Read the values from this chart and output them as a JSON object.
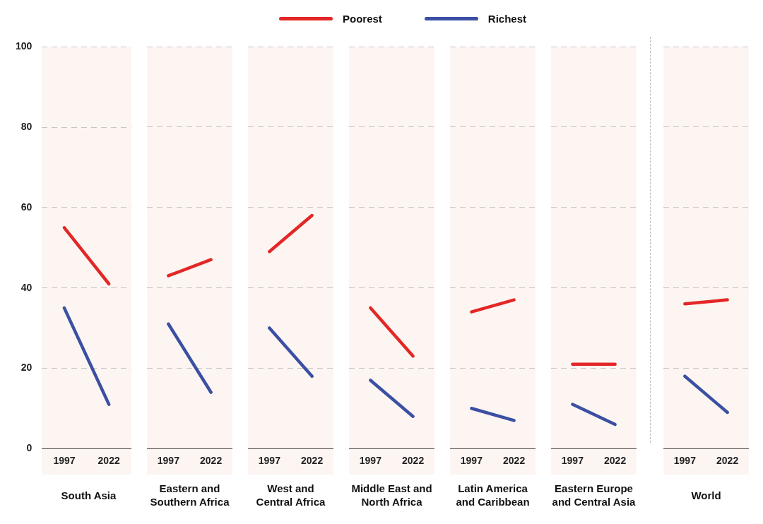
{
  "chart_data": [
    {
      "type": "line",
      "xlabel": "South Asia",
      "categories": [
        "1997",
        "2022"
      ],
      "series": [
        {
          "name": "Poorest",
          "color": "#e32726",
          "values": [
            55,
            41
          ]
        },
        {
          "name": "Richest",
          "color": "#3b4fa3",
          "values": [
            35,
            11
          ]
        }
      ],
      "ylim": [
        0,
        100
      ],
      "yticks": [
        0,
        20,
        40,
        60,
        80,
        100
      ],
      "grid": "y",
      "legend": "top"
    },
    {
      "type": "line",
      "xlabel": "Eastern and Southern Africa",
      "categories": [
        "1997",
        "2022"
      ],
      "series": [
        {
          "color": "#e32726",
          "values": [
            43,
            47
          ]
        },
        {
          "color": "#3b4fa3",
          "values": [
            31,
            14
          ]
        }
      ],
      "ylim": [
        0,
        100
      ],
      "yticks": [
        0,
        20,
        40,
        60,
        80,
        100
      ],
      "grid": "y",
      "tick_labels": "x"
    },
    {
      "type": "line",
      "xlabel": "West and Central Africa",
      "categories": [
        "1997",
        "2022"
      ],
      "series": [
        {
          "color": "#e32726",
          "values": [
            49,
            58
          ]
        },
        {
          "color": "#3b4fa3",
          "values": [
            30,
            18
          ]
        }
      ],
      "ylim": [
        0,
        100
      ],
      "yticks": [
        0,
        20,
        40,
        60,
        80,
        100
      ],
      "grid": "y",
      "tick_labels": "x"
    },
    {
      "type": "line",
      "xlabel": "Middle East and North Africa",
      "categories": [
        "1997",
        "2022"
      ],
      "series": [
        {
          "color": "#e32726",
          "values": [
            35,
            23
          ]
        },
        {
          "color": "#3b4fa3",
          "values": [
            17,
            8
          ]
        }
      ],
      "ylim": [
        0,
        100
      ],
      "yticks": [
        0,
        20,
        40,
        60,
        80,
        100
      ],
      "grid": "y",
      "tick_labels": "x"
    },
    {
      "type": "line",
      "xlabel": "Latin America and Caribbean",
      "categories": [
        "1997",
        "2022"
      ],
      "series": [
        {
          "color": "#e32726",
          "values": [
            34,
            37
          ]
        },
        {
          "color": "#3b4fa3",
          "values": [
            10,
            7
          ]
        }
      ],
      "ylim": [
        0,
        100
      ],
      "yticks": [
        0,
        20,
        40,
        60,
        80,
        100
      ],
      "grid": "y",
      "tick_labels": "x"
    },
    {
      "type": "line",
      "xlabel": "Eastern Europe and Central Asia",
      "categories": [
        "1997",
        "2022"
      ],
      "series": [
        {
          "color": "#e32726",
          "values": [
            21,
            21
          ]
        },
        {
          "color": "#3b4fa3",
          "values": [
            11,
            6
          ]
        }
      ],
      "ylim": [
        0,
        100
      ],
      "yticks": [
        0,
        20,
        40,
        60,
        80,
        100
      ],
      "grid": "y",
      "tick_labels": "x"
    },
    {
      "type": "line",
      "xlabel": "World",
      "categories": [
        "1997",
        "2022"
      ],
      "series": [
        {
          "color": "#e32726",
          "values": [
            36,
            37
          ]
        },
        {
          "color": "#3b4fa3",
          "values": [
            18,
            9
          ]
        }
      ],
      "ylim": [
        0,
        100
      ],
      "yticks": [
        0,
        20,
        40,
        60,
        80,
        100
      ],
      "grid": "y",
      "tick_labels": "x"
    }
  ]
}
